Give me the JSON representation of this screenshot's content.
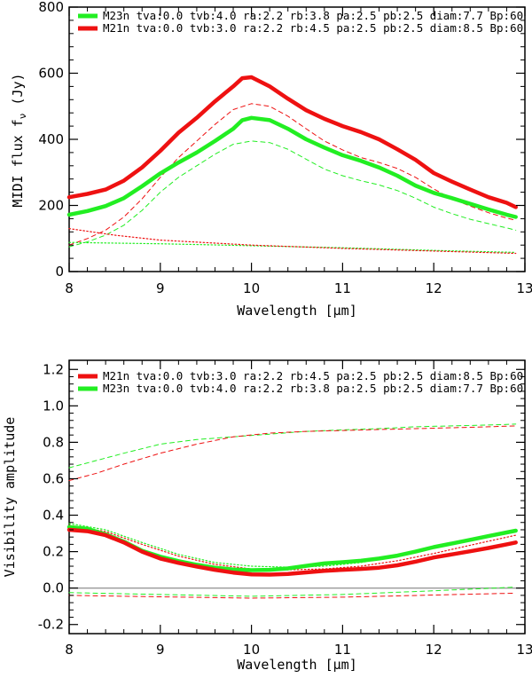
{
  "chart_data": [
    {
      "type": "line",
      "xlabel": "Wavelength [μm]",
      "ylabel": "MIDI flux f",
      "ylabel_sub": "ν",
      "ylabel_unit": " (Jy)",
      "xlim": [
        8,
        13
      ],
      "ylim": [
        0,
        800
      ],
      "xticks": [
        8,
        9,
        10,
        11,
        12,
        13
      ],
      "yticks": [
        0,
        200,
        400,
        600,
        800
      ],
      "legend": [
        {
          "label": "M23n tva:0.0 tvb:4.0 ra:2.2 rb:3.8 pa:2.5 pb:2.5 diam:7.7 Bp:60",
          "color": "#22ee22"
        },
        {
          "label": "M21n tva:0.0 tvb:3.0 ra:2.2 rb:4.5 pa:2.5 pb:2.5 diam:8.5 Bp:60",
          "color": "#ee1111"
        }
      ],
      "series": [
        {
          "name": "M23n total",
          "color": "#22ee22",
          "style": "thick",
          "x": [
            8,
            8.2,
            8.4,
            8.6,
            8.8,
            9.0,
            9.2,
            9.4,
            9.6,
            9.8,
            9.9,
            10.0,
            10.2,
            10.4,
            10.6,
            10.8,
            11.0,
            11.2,
            11.4,
            11.6,
            11.8,
            12.0,
            12.2,
            12.4,
            12.6,
            12.8,
            12.9
          ],
          "y": [
            172,
            183,
            198,
            222,
            258,
            297,
            330,
            360,
            395,
            432,
            458,
            465,
            458,
            432,
            400,
            375,
            352,
            335,
            315,
            290,
            260,
            238,
            222,
            205,
            188,
            172,
            165
          ]
        },
        {
          "name": "M21n total",
          "color": "#ee1111",
          "style": "thick",
          "x": [
            8,
            8.2,
            8.4,
            8.6,
            8.8,
            9.0,
            9.2,
            9.4,
            9.6,
            9.8,
            9.9,
            10.0,
            10.2,
            10.4,
            10.6,
            10.8,
            11.0,
            11.2,
            11.4,
            11.6,
            11.8,
            12.0,
            12.2,
            12.4,
            12.6,
            12.8,
            12.9
          ],
          "y": [
            225,
            235,
            248,
            275,
            315,
            365,
            420,
            465,
            515,
            560,
            585,
            588,
            560,
            523,
            488,
            462,
            440,
            422,
            400,
            370,
            338,
            298,
            272,
            248,
            225,
            208,
            195
          ]
        },
        {
          "name": "M23n component",
          "color": "#22ee22",
          "style": "dashed",
          "x": [
            8,
            8.2,
            8.4,
            8.6,
            8.8,
            9.0,
            9.2,
            9.4,
            9.6,
            9.8,
            10.0,
            10.2,
            10.4,
            10.6,
            10.8,
            11.0,
            11.2,
            11.4,
            11.6,
            11.8,
            12.0,
            12.2,
            12.4,
            12.6,
            12.8,
            12.9
          ],
          "y": [
            75,
            90,
            110,
            140,
            185,
            240,
            285,
            320,
            355,
            385,
            395,
            390,
            370,
            340,
            310,
            290,
            275,
            262,
            245,
            222,
            195,
            175,
            158,
            145,
            132,
            125
          ]
        },
        {
          "name": "M21n component",
          "color": "#ee1111",
          "style": "dashed",
          "x": [
            8,
            8.2,
            8.4,
            8.6,
            8.8,
            9.0,
            9.2,
            9.4,
            9.6,
            9.8,
            10.0,
            10.2,
            10.4,
            10.6,
            10.8,
            11.0,
            11.2,
            11.4,
            11.6,
            11.8,
            12.0,
            12.2,
            12.4,
            12.6,
            12.8,
            12.9
          ],
          "y": [
            80,
            100,
            125,
            165,
            220,
            285,
            345,
            395,
            445,
            490,
            508,
            500,
            470,
            432,
            395,
            368,
            345,
            330,
            312,
            285,
            250,
            220,
            198,
            178,
            162,
            155
          ]
        },
        {
          "name": "M23n dotted",
          "color": "#22ee22",
          "style": "dotted",
          "x": [
            8,
            9,
            10,
            11,
            12,
            12.9
          ],
          "y": [
            88,
            84,
            78,
            72,
            64,
            58
          ]
        },
        {
          "name": "M21n dotted",
          "color": "#ee1111",
          "style": "dotted",
          "x": [
            8,
            8.5,
            9,
            10,
            11,
            12,
            12.9
          ],
          "y": [
            130,
            110,
            95,
            80,
            70,
            62,
            55
          ]
        }
      ]
    },
    {
      "type": "line",
      "xlabel": "Wavelength [μm]",
      "ylabel": "Visibility amplitude",
      "xlim": [
        8,
        13
      ],
      "ylim": [
        -0.25,
        1.25
      ],
      "xticks": [
        8,
        9,
        10,
        11,
        12,
        13
      ],
      "yticks": [
        -0.2,
        0.0,
        0.2,
        0.4,
        0.6,
        0.8,
        1.0,
        1.2
      ],
      "ytick_labels": [
        "-0.2",
        "0.0",
        "0.2",
        "0.4",
        "0.6",
        "0.8",
        "1.0",
        "1.2"
      ],
      "hline": 0.0,
      "legend": [
        {
          "label": "M21n tva:0.0 tvb:3.0 ra:2.2 rb:4.5 pa:2.5 pb:2.5 diam:8.5 Bp:60",
          "color": "#ee1111"
        },
        {
          "label": "M23n tva:0.0 tvb:4.0 ra:2.2 rb:3.8 pa:2.5 pb:2.5 diam:7.7 Bp:60",
          "color": "#22ee22"
        }
      ],
      "series": [
        {
          "name": "M23n visibility",
          "color": "#22ee22",
          "style": "thick",
          "x": [
            8,
            8.2,
            8.4,
            8.6,
            8.8,
            9.0,
            9.2,
            9.4,
            9.6,
            9.8,
            10.0,
            10.2,
            10.4,
            10.6,
            10.8,
            11.0,
            11.2,
            11.4,
            11.6,
            11.8,
            12.0,
            12.2,
            12.4,
            12.6,
            12.8,
            12.9
          ],
          "y": [
            0.335,
            0.325,
            0.295,
            0.255,
            0.205,
            0.172,
            0.148,
            0.128,
            0.112,
            0.102,
            0.098,
            0.1,
            0.108,
            0.122,
            0.135,
            0.142,
            0.15,
            0.162,
            0.178,
            0.2,
            0.225,
            0.245,
            0.265,
            0.285,
            0.305,
            0.315
          ]
        },
        {
          "name": "M21n visibility",
          "color": "#ee1111",
          "style": "thick",
          "x": [
            8,
            8.2,
            8.4,
            8.6,
            8.8,
            9.0,
            9.2,
            9.4,
            9.6,
            9.8,
            10.0,
            10.2,
            10.4,
            10.6,
            10.8,
            11.0,
            11.2,
            11.4,
            11.6,
            11.8,
            12.0,
            12.2,
            12.4,
            12.6,
            12.8,
            12.9
          ],
          "y": [
            0.32,
            0.312,
            0.29,
            0.25,
            0.2,
            0.162,
            0.138,
            0.118,
            0.1,
            0.085,
            0.075,
            0.074,
            0.078,
            0.086,
            0.095,
            0.1,
            0.105,
            0.112,
            0.125,
            0.145,
            0.168,
            0.185,
            0.202,
            0.22,
            0.24,
            0.25
          ]
        },
        {
          "name": "M23n upper",
          "color": "#22ee22",
          "style": "dashed",
          "x": [
            8,
            8.3,
            8.6,
            9.0,
            9.4,
            9.8,
            10.2,
            10.6,
            11.0,
            11.4,
            11.8,
            12.2,
            12.6,
            12.9
          ],
          "y": [
            0.66,
            0.7,
            0.74,
            0.79,
            0.815,
            0.83,
            0.845,
            0.86,
            0.868,
            0.875,
            0.885,
            0.89,
            0.895,
            0.9
          ]
        },
        {
          "name": "M21n upper",
          "color": "#ee1111",
          "style": "dashed",
          "x": [
            8,
            8.3,
            8.6,
            9.0,
            9.4,
            9.8,
            10.2,
            10.6,
            11.0,
            11.4,
            11.8,
            12.2,
            12.6,
            12.9
          ],
          "y": [
            0.59,
            0.63,
            0.68,
            0.74,
            0.79,
            0.83,
            0.85,
            0.86,
            0.865,
            0.87,
            0.875,
            0.88,
            0.885,
            0.89
          ]
        },
        {
          "name": "M23n dotted",
          "color": "#22ee22",
          "style": "dotted",
          "x": [
            8,
            8.4,
            8.8,
            9.2,
            9.6,
            10.0,
            10.4,
            10.8,
            11.2,
            11.6,
            12.0,
            12.4,
            12.9
          ],
          "y": [
            0.355,
            0.32,
            0.25,
            0.185,
            0.14,
            0.12,
            0.115,
            0.12,
            0.14,
            0.175,
            0.22,
            0.26,
            0.32
          ]
        },
        {
          "name": "M21n dotted",
          "color": "#ee1111",
          "style": "dotted",
          "x": [
            8,
            8.4,
            8.8,
            9.2,
            9.6,
            10.0,
            10.4,
            10.8,
            11.2,
            11.6,
            12.0,
            12.4,
            12.9
          ],
          "y": [
            0.345,
            0.31,
            0.24,
            0.175,
            0.13,
            0.105,
            0.1,
            0.105,
            0.12,
            0.15,
            0.19,
            0.235,
            0.29
          ]
        },
        {
          "name": "M23n near zero",
          "color": "#22ee22",
          "style": "dashed",
          "x": [
            8,
            9,
            10,
            11,
            12,
            12.9
          ],
          "y": [
            -0.025,
            -0.035,
            -0.045,
            -0.035,
            -0.015,
            0.005
          ]
        },
        {
          "name": "M21n near zero",
          "color": "#ee1111",
          "style": "dashed",
          "x": [
            8,
            9,
            10,
            11,
            12,
            12.9
          ],
          "y": [
            -0.04,
            -0.048,
            -0.055,
            -0.05,
            -0.038,
            -0.028
          ]
        }
      ]
    }
  ]
}
